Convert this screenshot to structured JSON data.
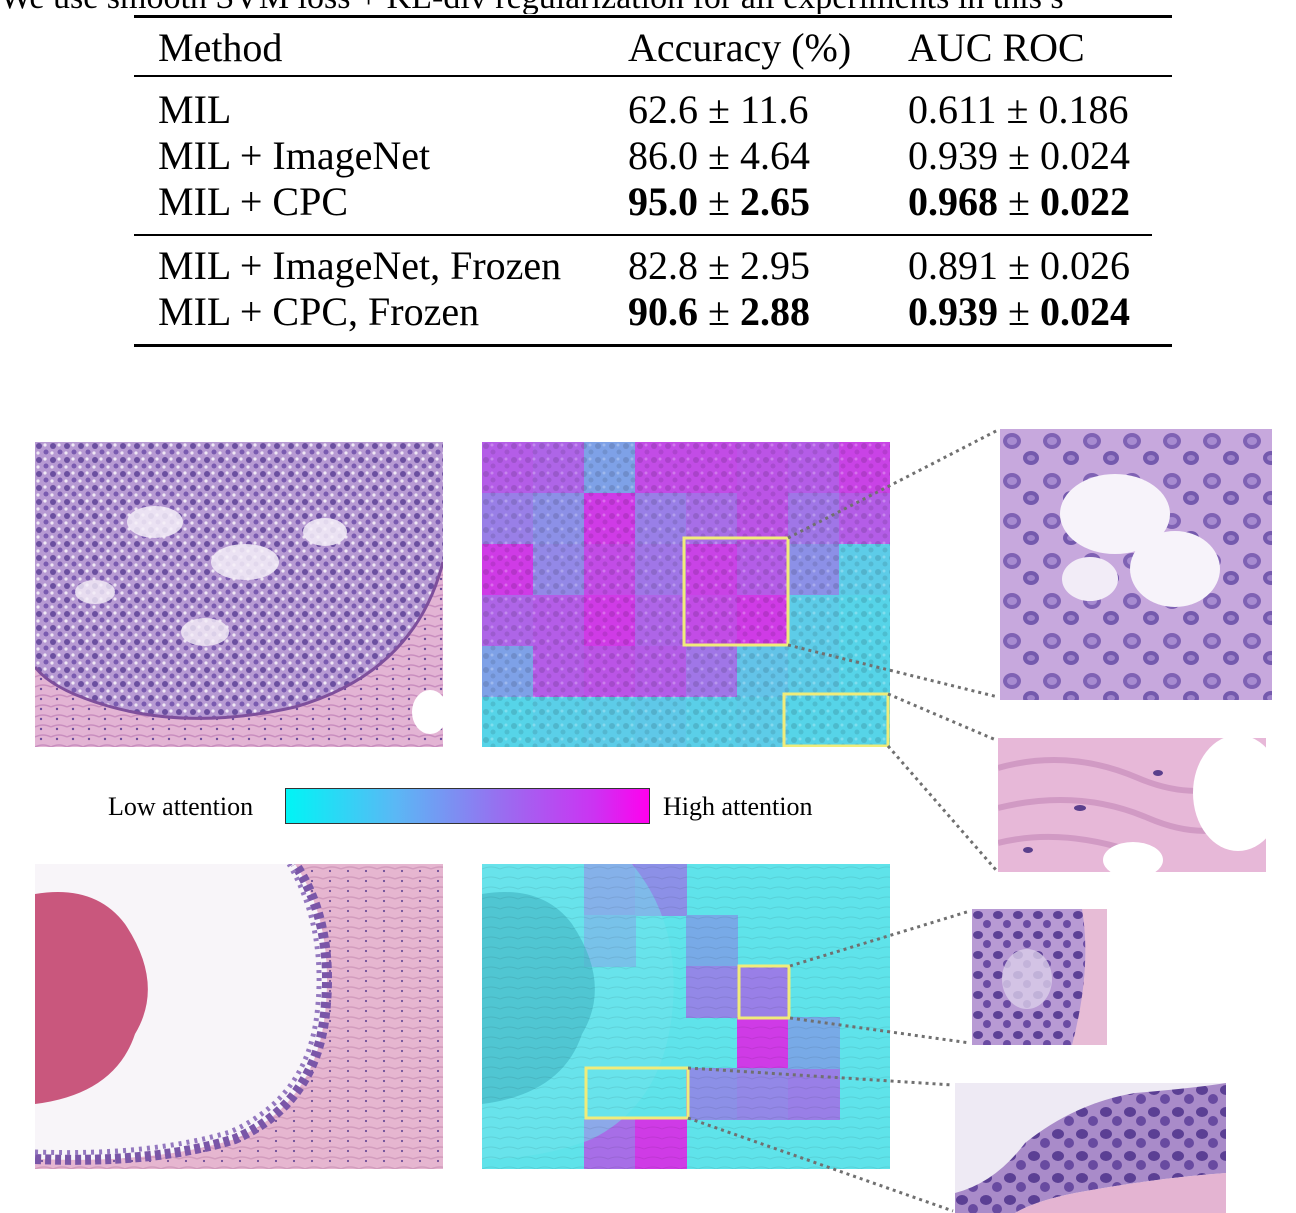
{
  "caption_fragment": "We use smooth SVM loss + KL-div regularization for all experiments in this s",
  "table": {
    "headers": [
      "Method",
      "Accuracy (%)",
      "AUC ROC"
    ],
    "group1": [
      {
        "method": "MIL",
        "acc_mean": "62.6",
        "acc_err": "11.6",
        "auc_mean": "0.611",
        "auc_err": "0.186",
        "best": false
      },
      {
        "method": "MIL + ImageNet",
        "acc_mean": "86.0",
        "acc_err": "4.64",
        "auc_mean": "0.939",
        "auc_err": "0.024",
        "best": false
      },
      {
        "method": "MIL + CPC",
        "acc_mean": "95.0",
        "acc_err": "2.65",
        "auc_mean": "0.968",
        "auc_err": "0.022",
        "best": true
      }
    ],
    "group2": [
      {
        "method": "MIL + ImageNet, Frozen",
        "acc_mean": "82.8",
        "acc_err": "2.95",
        "auc_mean": "0.891",
        "auc_err": "0.026",
        "best": false
      },
      {
        "method": "MIL + CPC, Frozen",
        "acc_mean": "90.6",
        "acc_err": "2.88",
        "auc_mean": "0.939",
        "auc_err": "0.024",
        "best": true
      }
    ],
    "pm_symbol": "±"
  },
  "legend": {
    "low_label": "Low attention",
    "high_label": "High attention",
    "low_color": "#00f5f5",
    "high_color": "#ff00ee"
  },
  "colors": {
    "highlight_box": "#f0ec7a",
    "tissue_purple": "#8a66b8",
    "tissue_pink": "#e2a8c8",
    "heat_cyan": "#4fdde8",
    "heat_magenta": "#d632e6"
  }
}
